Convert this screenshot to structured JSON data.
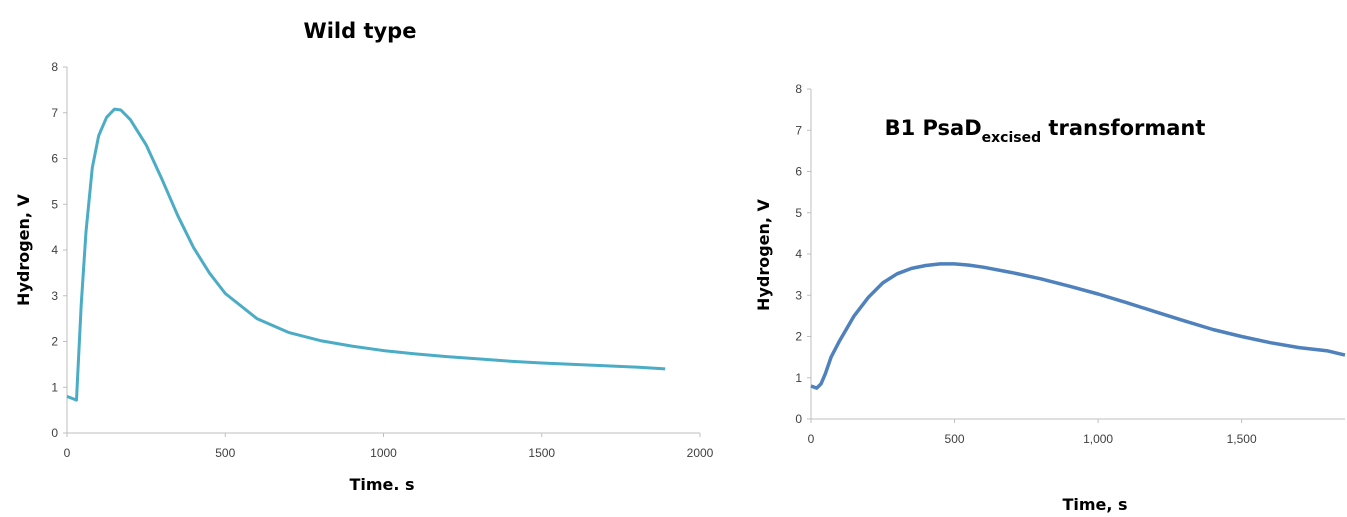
{
  "chart_data": [
    {
      "type": "line",
      "title": "Wild type",
      "xlabel": "Time. s",
      "ylabel": "Hydrogen, V",
      "xlim": [
        0,
        2000
      ],
      "ylim": [
        0,
        8
      ],
      "x_ticks": [
        "0",
        "500",
        "1000",
        "1500",
        "2000"
      ],
      "y_ticks": [
        "0",
        "1",
        "2",
        "3",
        "4",
        "5",
        "6",
        "7",
        "8"
      ],
      "line_color": "#4bacc6",
      "grid": false,
      "series": [
        {
          "x": [
            0,
            30,
            32,
            45,
            60,
            80,
            100,
            125,
            150,
            170,
            200,
            250,
            300,
            350,
            400,
            450,
            500,
            600,
            700,
            800,
            900,
            1000,
            1100,
            1200,
            1300,
            1400,
            1500,
            1600,
            1700,
            1800,
            1890
          ],
          "y": [
            0.8,
            0.72,
            1.0,
            2.8,
            4.4,
            5.8,
            6.5,
            6.9,
            7.08,
            7.06,
            6.85,
            6.3,
            5.55,
            4.75,
            4.05,
            3.5,
            3.05,
            2.5,
            2.2,
            2.02,
            1.9,
            1.8,
            1.73,
            1.67,
            1.62,
            1.57,
            1.53,
            1.5,
            1.47,
            1.44,
            1.4
          ]
        }
      ]
    },
    {
      "type": "line",
      "title_main": "B1 PsaD",
      "title_sub": "excised",
      "title_tail": " transformant",
      "xlabel": "Time, s",
      "ylabel": "Hydrogen,  V",
      "xlim": [
        0,
        1860
      ],
      "ylim": [
        0,
        8
      ],
      "x_ticks": [
        {
          "value": 0,
          "label": "0"
        },
        {
          "value": 500,
          "label": "500"
        },
        {
          "value": 1000,
          "label": "1,000"
        },
        {
          "value": 1500,
          "label": "1,500"
        }
      ],
      "y_ticks": [
        "0",
        "1",
        "2",
        "3",
        "4",
        "5",
        "6",
        "7",
        "8"
      ],
      "line_color": "#4f81bd",
      "grid": false,
      "series": [
        {
          "x": [
            0,
            20,
            35,
            50,
            70,
            100,
            150,
            200,
            250,
            300,
            350,
            400,
            450,
            500,
            550,
            600,
            700,
            800,
            900,
            1000,
            1100,
            1200,
            1300,
            1400,
            1500,
            1600,
            1700,
            1800,
            1860
          ],
          "y": [
            0.8,
            0.75,
            0.85,
            1.1,
            1.5,
            1.9,
            2.5,
            2.95,
            3.3,
            3.52,
            3.65,
            3.72,
            3.76,
            3.76,
            3.73,
            3.68,
            3.55,
            3.4,
            3.22,
            3.03,
            2.82,
            2.6,
            2.38,
            2.17,
            2.0,
            1.85,
            1.73,
            1.65,
            1.55
          ]
        }
      ]
    }
  ]
}
